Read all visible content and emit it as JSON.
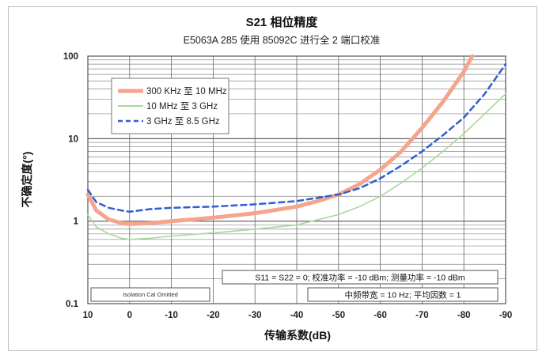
{
  "chart_data": {
    "type": "line",
    "title": "S21 相位精度",
    "subtitle": "E5063A 285 使用 85092C 进行全 2 端口校准",
    "xlabel": "传输系数(dB)",
    "ylabel": "不确定度(°)",
    "x_ticks": [
      "10",
      "0",
      "-10",
      "-20",
      "-30",
      "-40",
      "-50",
      "-60",
      "-70",
      "-80",
      "-90"
    ],
    "y_ticks": [
      "0.1",
      "1",
      "10",
      "100"
    ],
    "xlim": [
      10,
      -90
    ],
    "ylim": [
      0.1,
      100
    ],
    "y_scale": "log",
    "grid": true,
    "legend_position": "top-left",
    "series": [
      {
        "name": "300 KHz 至 10 MHz",
        "color": "#f4a58c",
        "style": "solid-thick",
        "x": [
          10,
          8,
          5,
          2,
          0,
          -5,
          -10,
          -20,
          -30,
          -40,
          -45,
          -50,
          -55,
          -60,
          -65,
          -70,
          -75,
          -80,
          -82
        ],
        "y": [
          2.1,
          1.35,
          1.05,
          0.95,
          0.92,
          0.95,
          1.0,
          1.1,
          1.25,
          1.5,
          1.75,
          2.1,
          2.8,
          4.2,
          7.0,
          13.5,
          28,
          65,
          100
        ]
      },
      {
        "name": "10 MHz 至 3 GHz",
        "color": "#a9d89c",
        "style": "solid",
        "x": [
          10,
          8,
          5,
          2,
          0,
          -5,
          -10,
          -20,
          -30,
          -40,
          -50,
          -55,
          -60,
          -65,
          -70,
          -75,
          -80,
          -85,
          -90
        ],
        "y": [
          1.2,
          0.85,
          0.7,
          0.62,
          0.6,
          0.62,
          0.66,
          0.72,
          0.8,
          0.9,
          1.2,
          1.5,
          2.0,
          2.9,
          4.4,
          7.0,
          11.5,
          20,
          35
        ]
      },
      {
        "name": "3 GHz 至 8.5 GHz",
        "color": "#2f5fd0",
        "style": "dashed",
        "x": [
          10,
          8,
          5,
          2,
          0,
          -5,
          -10,
          -20,
          -30,
          -40,
          -50,
          -55,
          -60,
          -65,
          -70,
          -75,
          -80,
          -85,
          -90
        ],
        "y": [
          2.4,
          1.7,
          1.45,
          1.35,
          1.3,
          1.4,
          1.45,
          1.5,
          1.6,
          1.75,
          2.1,
          2.5,
          3.3,
          4.7,
          7.0,
          11,
          18,
          35,
          80
        ]
      }
    ],
    "annotations": [
      "S11 = S22 = 0; 校准功率 = -10 dBm; 测量功率 = -10 dBm",
      "中频带宽 = 10 Hz; 平均因数 = 1",
      "Isolation Cal Omitted"
    ]
  }
}
